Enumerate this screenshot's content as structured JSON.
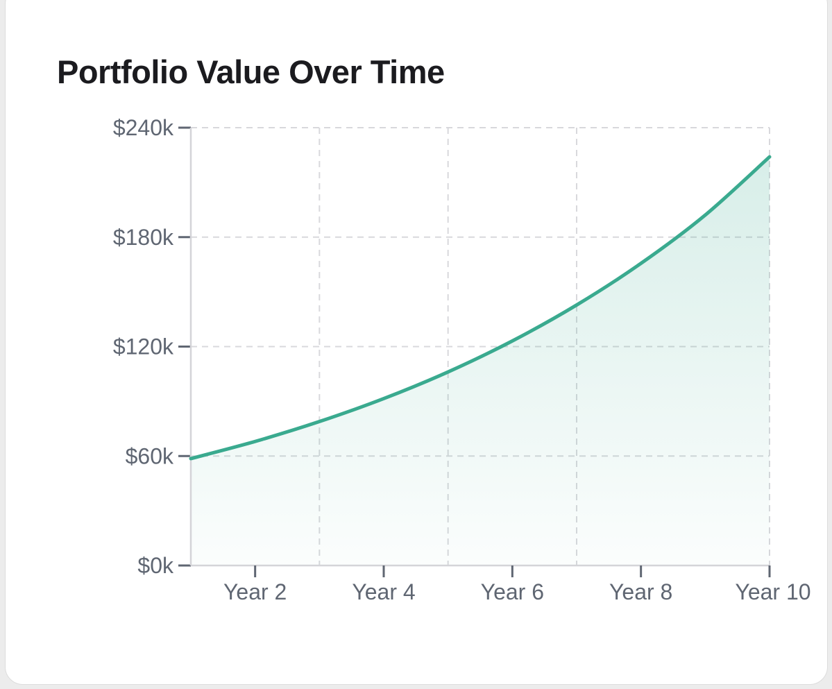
{
  "chart_data": {
    "type": "area",
    "title": "Portfolio Value Over Time",
    "xlabel": "",
    "ylabel": "",
    "x": [
      1,
      2,
      3,
      4,
      5,
      6,
      7,
      8,
      9,
      10
    ],
    "x_tick_labels": [
      "Year 2",
      "Year 4",
      "Year 6",
      "Year 8",
      "Year 10"
    ],
    "x_tick_values": [
      2,
      4,
      6,
      8,
      10
    ],
    "y_tick_labels": [
      "$0k",
      "$60k",
      "$120k",
      "$180k",
      "$240k"
    ],
    "y_tick_values": [
      0,
      60000,
      120000,
      180000,
      240000
    ],
    "ylim": [
      0,
      240000
    ],
    "xlim": [
      1,
      10
    ],
    "grid": true,
    "series": [
      {
        "name": "Portfolio Value",
        "color": "#3aaa8f",
        "values": [
          58600,
          68000,
          78900,
          91500,
          106100,
          123100,
          142800,
          165600,
          192100,
          224000
        ]
      }
    ]
  }
}
